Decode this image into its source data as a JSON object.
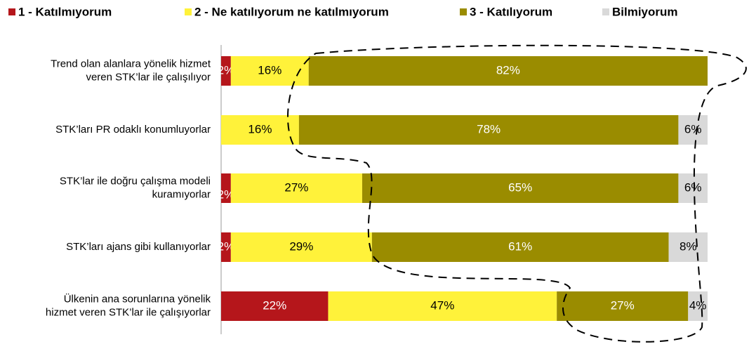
{
  "chart_data": {
    "type": "stacked-barh",
    "categories": [
      [
        "Trend  olan alanlara  yönelik hizmet",
        "veren  STK’lar ile  çalışılıyor"
      ],
      [
        "STK’ları PR odaklı  konumluyorlar"
      ],
      [
        "STK’lar ile doğru  çalışma modeli",
        "kuramıyorlar"
      ],
      [
        "STK’ları ajans gibi kullanıyorlar"
      ],
      [
        "Ülkenin ana sorunlarına  yönelik",
        "hizmet veren  STK’lar ile çalışıyorlar"
      ]
    ],
    "series": [
      {
        "name": "1 - Katılmıyorum",
        "color": "#b5161b",
        "values": [
          2,
          null,
          2,
          2,
          22
        ],
        "value_labels": [
          "2%",
          null,
          "2%",
          "2%",
          "22%"
        ]
      },
      {
        "name": "2 - Ne katılıyorum ne katılmıyorum",
        "color": "#fff23a",
        "values": [
          16,
          16,
          27,
          29,
          47
        ],
        "value_labels": [
          "16%",
          "16%",
          "27%",
          "29%",
          "47%"
        ]
      },
      {
        "name": "3 - Katılıyorum",
        "color": "#9a8c00",
        "values": [
          82,
          78,
          65,
          61,
          27
        ],
        "value_labels": [
          "82%",
          "78%",
          "65%",
          "61%",
          "27%"
        ]
      },
      {
        "name": "Bilmiyorum",
        "color": "#d9d9d9",
        "values": [
          null,
          6,
          6,
          8,
          4
        ],
        "value_labels": [
          null,
          "6%",
          "6%",
          "8%",
          "4%"
        ]
      }
    ],
    "label_colors": [
      "#ffffff",
      "#000000",
      "#ffffff",
      "#000000"
    ],
    "xlim": [
      0,
      100
    ]
  }
}
